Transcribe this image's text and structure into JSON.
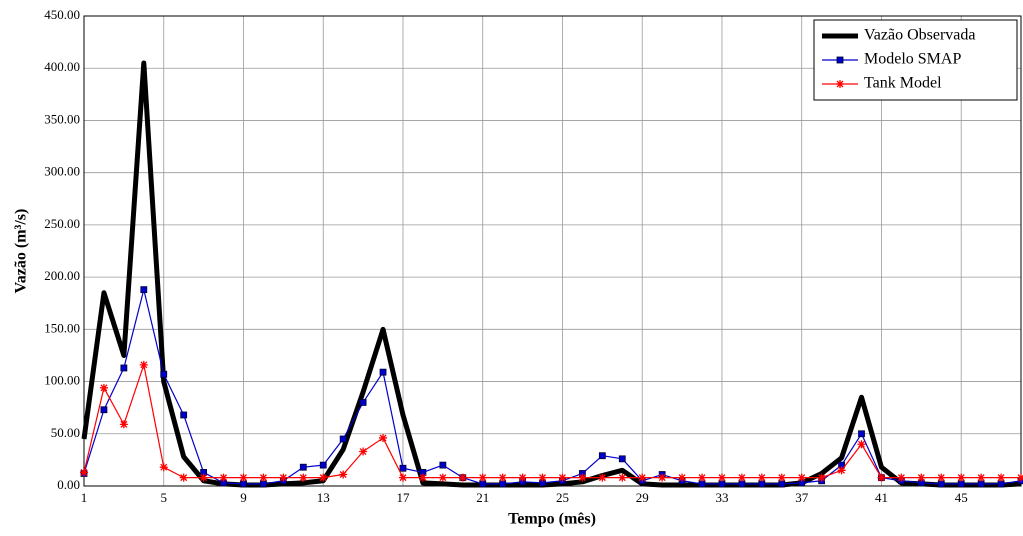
{
  "chart_data": {
    "type": "line",
    "x_label": "Tempo (mês)",
    "y_label": "Vazão (m³/s)",
    "x": [
      1,
      2,
      3,
      4,
      5,
      6,
      7,
      8,
      9,
      10,
      11,
      12,
      13,
      14,
      15,
      16,
      17,
      18,
      19,
      20,
      21,
      22,
      23,
      24,
      25,
      26,
      27,
      28,
      29,
      30,
      31,
      32,
      33,
      34,
      35,
      36,
      37,
      38,
      39,
      40,
      41,
      42,
      43,
      44,
      45,
      46,
      47,
      48
    ],
    "xlim": [
      1,
      48
    ],
    "xticks": [
      1,
      5,
      9,
      13,
      17,
      21,
      25,
      29,
      33,
      37,
      41,
      45
    ],
    "ylim": [
      0,
      450
    ],
    "yticks": [
      {
        "value": 0,
        "label": "0.00"
      },
      {
        "value": 50,
        "label": "50.00"
      },
      {
        "value": 100,
        "label": "100.00"
      },
      {
        "value": 150,
        "label": "150.00"
      },
      {
        "value": 200,
        "label": "200.00"
      },
      {
        "value": 250,
        "label": "250.00"
      },
      {
        "value": 300,
        "label": "300.00"
      },
      {
        "value": 350,
        "label": "350.00"
      },
      {
        "value": 400,
        "label": "400.00"
      },
      {
        "value": 450,
        "label": "450.00"
      }
    ],
    "grid": true,
    "legend": "upper right",
    "series": [
      {
        "name": "Vazão Observada",
        "color": "#000000",
        "line_width": 5,
        "marker": "none",
        "values": [
          45,
          185,
          125,
          405,
          100,
          28,
          5,
          2,
          1,
          1,
          2,
          3,
          5,
          35,
          90,
          150,
          68,
          3,
          2,
          1,
          1,
          1,
          1,
          1,
          2,
          4,
          10,
          15,
          2,
          1,
          1,
          1,
          1,
          1,
          1,
          1,
          3,
          12,
          27,
          85,
          18,
          3,
          2,
          1,
          1,
          1,
          1,
          2
        ]
      },
      {
        "name": "Modelo SMAP",
        "color": "#0000cc",
        "line_width": 1.2,
        "marker": "square",
        "values": [
          12,
          73,
          113,
          188,
          107,
          68,
          13,
          3,
          2,
          2,
          5,
          18,
          20,
          45,
          80,
          109,
          17,
          13,
          20,
          8,
          2,
          2,
          4,
          3,
          5,
          12,
          29,
          26,
          5,
          11,
          5,
          2,
          2,
          2,
          2,
          2,
          3,
          5,
          20,
          50,
          8,
          5,
          3,
          2,
          2,
          2,
          2,
          5
        ]
      },
      {
        "name": "Tank Model",
        "color": "#ff0000",
        "line_width": 1.2,
        "marker": "asterisk",
        "values": [
          13,
          94,
          59,
          116,
          18,
          8,
          8,
          8,
          8,
          8,
          8,
          8,
          8,
          11,
          33,
          46,
          8,
          8,
          8,
          8,
          8,
          8,
          8,
          8,
          8,
          8,
          8,
          8,
          8,
          8,
          8,
          8,
          8,
          8,
          8,
          8,
          8,
          8,
          15,
          40,
          8,
          8,
          8,
          8,
          8,
          8,
          8,
          8
        ]
      }
    ]
  }
}
